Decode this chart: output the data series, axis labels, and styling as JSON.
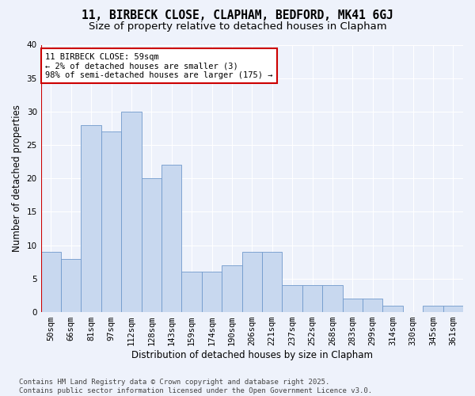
{
  "title_line1": "11, BIRBECK CLOSE, CLAPHAM, BEDFORD, MK41 6GJ",
  "title_line2": "Size of property relative to detached houses in Clapham",
  "xlabel": "Distribution of detached houses by size in Clapham",
  "ylabel": "Number of detached properties",
  "categories": [
    "50sqm",
    "66sqm",
    "81sqm",
    "97sqm",
    "112sqm",
    "128sqm",
    "143sqm",
    "159sqm",
    "174sqm",
    "190sqm",
    "206sqm",
    "221sqm",
    "237sqm",
    "252sqm",
    "268sqm",
    "283sqm",
    "299sqm",
    "314sqm",
    "330sqm",
    "345sqm",
    "361sqm"
  ],
  "values": [
    9,
    8,
    28,
    27,
    30,
    20,
    22,
    6,
    6,
    7,
    9,
    9,
    4,
    4,
    4,
    2,
    2,
    1,
    0,
    1,
    1
  ],
  "bar_color": "#c8d8ef",
  "bar_edge_color": "#7099cc",
  "background_color": "#eef2fb",
  "grid_color": "#ffffff",
  "annotation_box_text": "11 BIRBECK CLOSE: 59sqm\n← 2% of detached houses are smaller (3)\n98% of semi-detached houses are larger (175) →",
  "annotation_box_color": "#ffffff",
  "annotation_box_edge": "#cc0000",
  "vline_color": "#cc0000",
  "ylim": [
    0,
    40
  ],
  "yticks": [
    0,
    5,
    10,
    15,
    20,
    25,
    30,
    35,
    40
  ],
  "footer_text": "Contains HM Land Registry data © Crown copyright and database right 2025.\nContains public sector information licensed under the Open Government Licence v3.0.",
  "title_fontsize": 10.5,
  "subtitle_fontsize": 9.5,
  "axis_label_fontsize": 8.5,
  "tick_fontsize": 7.5,
  "annotation_fontsize": 7.5,
  "footer_fontsize": 6.5
}
